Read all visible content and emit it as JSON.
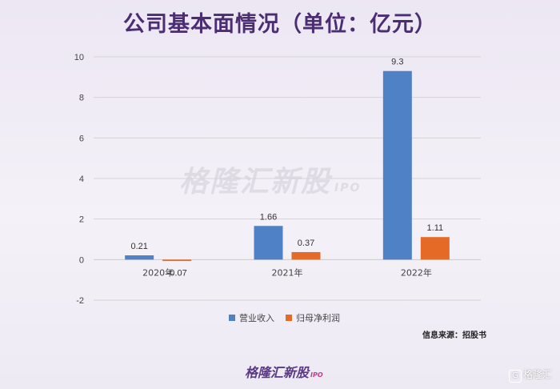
{
  "title": "公司基本面情况（单位：亿元）",
  "source": "信息来源：招股书",
  "watermark": "格隆汇新股",
  "watermark_suffix": "IPO",
  "footer_logo": "格隆汇新股",
  "footer_logo_suffix": "IPO",
  "corner_logo_text": "格隆汇",
  "corner_logo_glyph": "G",
  "colors": {
    "revenue": "#4f81c7",
    "profit": "#e46a25",
    "title": "#4b2d72"
  },
  "chart_data": {
    "type": "bar",
    "categories": [
      "2020年",
      "2021年",
      "2022年"
    ],
    "series": [
      {
        "name": "营业收入",
        "values": [
          0.21,
          1.66,
          9.3
        ],
        "labels": [
          "0.21",
          "1.66",
          "9.3"
        ]
      },
      {
        "name": "归母净利润",
        "values": [
          -0.07,
          0.37,
          1.11
        ],
        "labels": [
          "-0.07",
          "0.37",
          "1.11"
        ]
      }
    ],
    "ylim": [
      -2,
      10
    ],
    "yticks": [
      -2,
      0,
      2,
      4,
      6,
      8,
      10
    ],
    "grid": true,
    "legend": "bottom"
  }
}
